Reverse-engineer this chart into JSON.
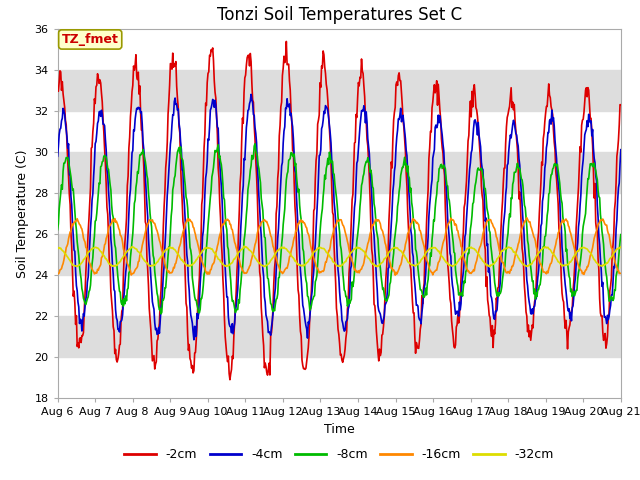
{
  "title": "Tonzi Soil Temperatures Set C",
  "xlabel": "Time",
  "ylabel": "Soil Temperature (C)",
  "ylim": [
    18,
    36
  ],
  "x_tick_labels": [
    "Aug 6",
    "Aug 7",
    "Aug 8",
    "Aug 9",
    "Aug 10",
    "Aug 11",
    "Aug 12",
    "Aug 13",
    "Aug 14",
    "Aug 15",
    "Aug 16",
    "Aug 17",
    "Aug 18",
    "Aug 19",
    "Aug 20",
    "Aug 21"
  ],
  "series_order": [
    "-2cm",
    "-4cm",
    "-8cm",
    "-16cm",
    "-32cm"
  ],
  "series": {
    "-2cm": {
      "color": "#dd0000",
      "lw": 1.2
    },
    "-4cm": {
      "color": "#0000cc",
      "lw": 1.2
    },
    "-8cm": {
      "color": "#00bb00",
      "lw": 1.2
    },
    "-16cm": {
      "color": "#ff8800",
      "lw": 1.2
    },
    "-32cm": {
      "color": "#dddd00",
      "lw": 1.2
    }
  },
  "annotation_text": "TZ_fmet",
  "bg_color": "#ffffff",
  "plot_bg_color": "#ffffff",
  "band_color": "#dddddd",
  "title_fontsize": 12,
  "axis_fontsize": 9,
  "tick_fontsize": 8,
  "legend_fontsize": 9
}
